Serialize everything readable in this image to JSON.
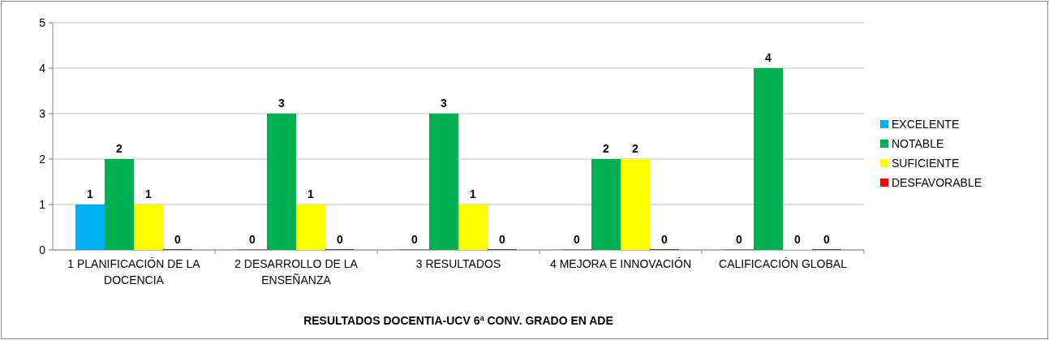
{
  "chart_data": {
    "type": "bar",
    "title": "RESULTADOS DOCENTIA-UCV 6ª CONV. GRADO EN ADE",
    "categories": [
      "1 PLANIFICACIÓN DE LA DOCENCIA",
      "2 DESARROLLO DE LA ENSEÑANZA",
      "3 RESULTADOS",
      "4 MEJORA E INNOVACIÓN",
      "CALIFICACIÓN GLOBAL"
    ],
    "series": [
      {
        "name": "EXCELENTE",
        "color": "#00b0f0",
        "values": [
          1,
          0,
          0,
          0,
          0
        ]
      },
      {
        "name": "NOTABLE",
        "color": "#00b050",
        "values": [
          2,
          3,
          3,
          2,
          4
        ]
      },
      {
        "name": "SUFICIENTE",
        "color": "#ffff00",
        "values": [
          1,
          1,
          1,
          2,
          0
        ]
      },
      {
        "name": "DESFAVORABLE",
        "color": "#ff0000",
        "values": [
          0,
          0,
          0,
          0,
          0
        ]
      }
    ],
    "ylim": [
      0,
      5
    ],
    "yticks": [
      0,
      1,
      2,
      3,
      4,
      5
    ],
    "grid": "y",
    "legend": "right",
    "data_labels": true
  }
}
